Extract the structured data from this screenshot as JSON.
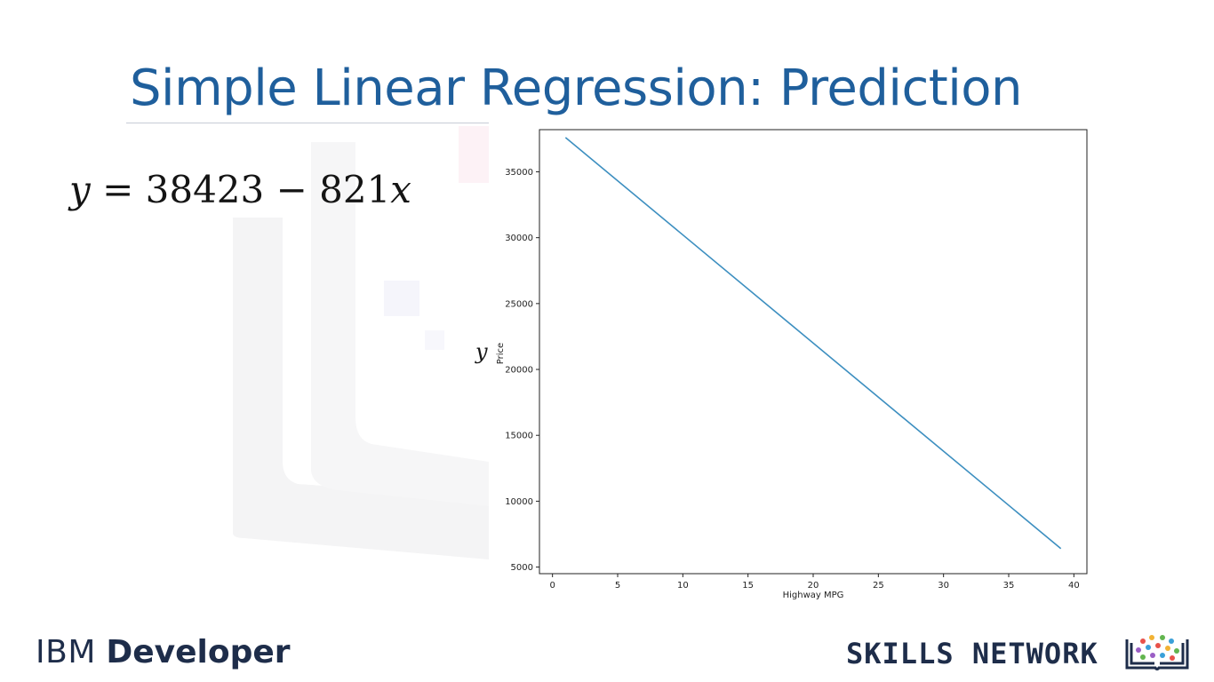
{
  "slide": {
    "title": "Simple Linear Regression: Prediction",
    "title_color": "#1f5f9c",
    "equation": {
      "lhs": "y",
      "eq": " = 38423 − 821",
      "var": "x"
    },
    "y_symbol": "y"
  },
  "branding": {
    "ibm_word": "IBM",
    "developer_word": "Developer",
    "skills_network": "SKILLS NETWORK",
    "text_color": "#1e2d4a",
    "logo_icon": "book-network-icon"
  },
  "chart_data": {
    "type": "line",
    "title": "",
    "xlabel": "Highway MPG",
    "ylabel": "Price",
    "xlim": [
      -1,
      41
    ],
    "ylim": [
      4500,
      38200
    ],
    "x_ticks": [
      0,
      5,
      10,
      15,
      20,
      25,
      30,
      35,
      40
    ],
    "y_ticks": [
      5000,
      10000,
      15000,
      20000,
      25000,
      30000,
      35000
    ],
    "grid": false,
    "series": [
      {
        "x": [
          1,
          39
        ],
        "y": [
          37602,
          6404
        ],
        "color": "#3d8fc0"
      }
    ]
  }
}
